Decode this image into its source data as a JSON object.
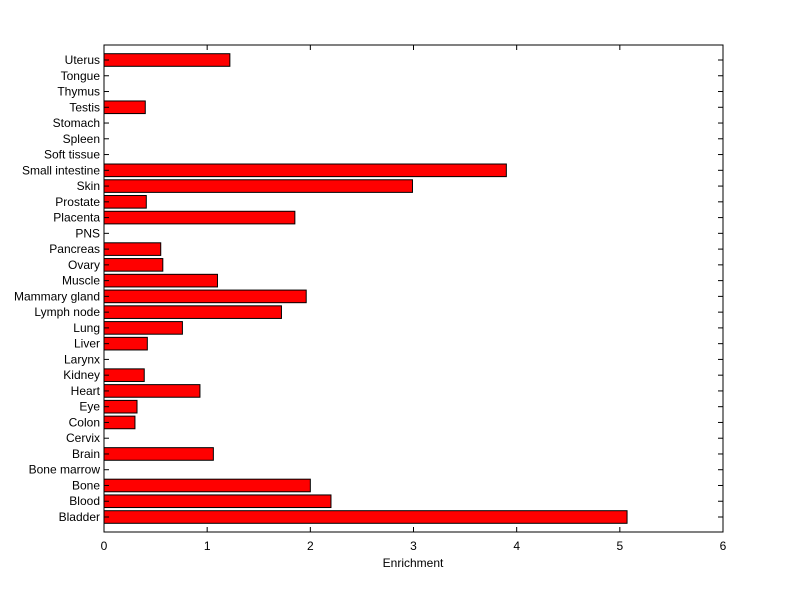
{
  "chart_data": {
    "type": "bar",
    "orientation": "horizontal",
    "title": "",
    "xlabel": "Enrichment",
    "ylabel": "",
    "xlim": [
      0,
      6
    ],
    "xticks": [
      0,
      1,
      2,
      3,
      4,
      5,
      6
    ],
    "xtick_labels": [
      "0",
      "1",
      "2",
      "3",
      "4",
      "5",
      "6"
    ],
    "grid": false,
    "legend": "none",
    "bar_color": "#ff0000",
    "bar_edge_color": "#000000",
    "categories": [
      "Bladder",
      "Blood",
      "Bone",
      "Bone marrow",
      "Brain",
      "Cervix",
      "Colon",
      "Eye",
      "Heart",
      "Kidney",
      "Larynx",
      "Liver",
      "Lung",
      "Lymph node",
      "Mammary gland",
      "Muscle",
      "Ovary",
      "Pancreas",
      "PNS",
      "Placenta",
      "Prostate",
      "Skin",
      "Small intestine",
      "Soft tissue",
      "Spleen",
      "Stomach",
      "Testis",
      "Thymus",
      "Tongue",
      "Uterus"
    ],
    "values": [
      5.07,
      2.2,
      2.0,
      0,
      1.06,
      0,
      0.3,
      0.32,
      0.93,
      0.39,
      0,
      0.42,
      0.76,
      1.72,
      1.96,
      1.1,
      0.57,
      0.55,
      0,
      1.85,
      0.41,
      2.99,
      3.9,
      0,
      0,
      0,
      0.4,
      0,
      0,
      1.22
    ]
  }
}
